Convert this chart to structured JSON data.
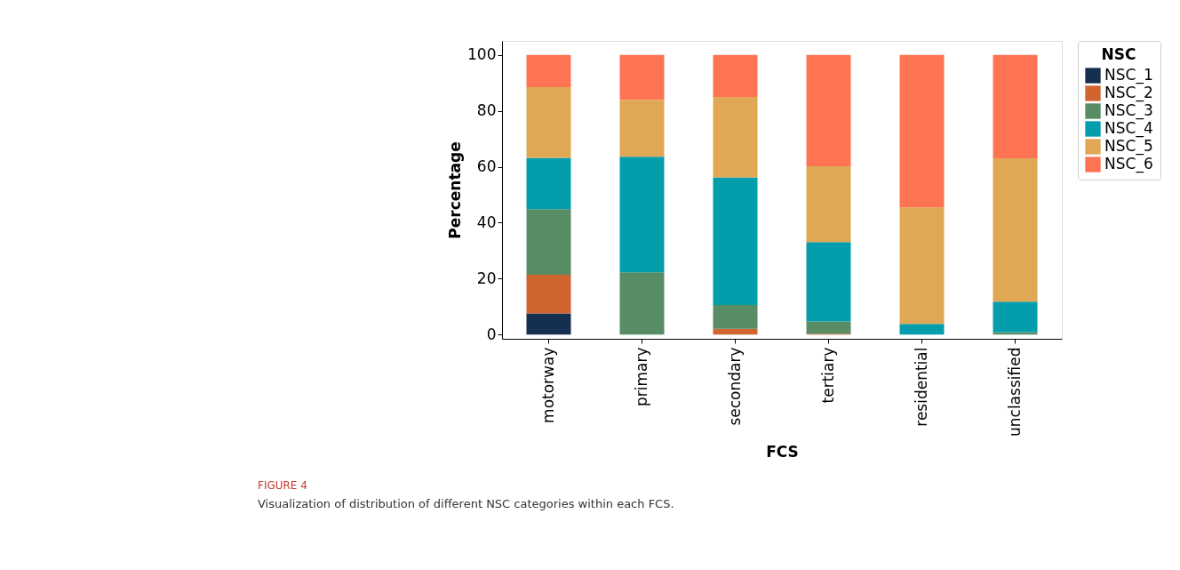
{
  "chart_data": {
    "type": "bar",
    "stacked": true,
    "xlabel": "FCS",
    "ylabel": "Percentage",
    "legend_title": "NSC",
    "legend": "top right",
    "categories": [
      "motorway",
      "primary",
      "secondary",
      "tertiary",
      "residential",
      "unclassified"
    ],
    "series": [
      {
        "name": "NSC_1",
        "color": "#152f50",
        "values": [
          7.6,
          0,
          0,
          0,
          0,
          0
        ]
      },
      {
        "name": "NSC_2",
        "color": "#d1652f",
        "values": [
          13.8,
          0,
          2.1,
          0.3,
          0,
          0
        ]
      },
      {
        "name": "NSC_3",
        "color": "#588c65",
        "values": [
          23.4,
          22.3,
          8.5,
          4.4,
          0,
          0.9
        ]
      },
      {
        "name": "NSC_4",
        "color": "#039dac",
        "values": [
          18.4,
          41.3,
          45.6,
          28.4,
          3.8,
          10.9
        ]
      },
      {
        "name": "NSC_5",
        "color": "#e0a854",
        "values": [
          25.3,
          20.3,
          28.8,
          27.1,
          41.7,
          51.2
        ]
      },
      {
        "name": "NSC_6",
        "color": "#fe7453",
        "values": [
          11.5,
          16.1,
          15.0,
          39.8,
          54.5,
          37.0
        ]
      }
    ],
    "ylim": [
      -1.5,
      105
    ],
    "yticks": [
      0,
      20,
      40,
      60,
      80,
      100
    ],
    "grid": false,
    "annotations": [
      "FIGURE 4",
      "Visualization of distribution of different NSC categories within each FCS."
    ]
  }
}
